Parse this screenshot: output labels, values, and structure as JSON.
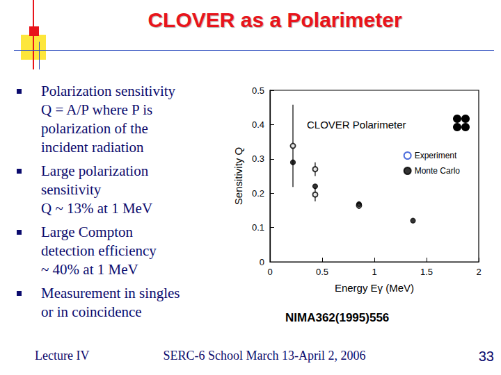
{
  "slide": {
    "title": "CLOVER as a Polarimeter",
    "bullets": [
      [
        "Polarization sensitivity",
        "Q = A/P   where P is",
        "polarization of the",
        "incident radiation"
      ],
      [
        "Large polarization",
        "sensitivity",
        "Q ~ 13% at 1 MeV"
      ],
      [
        "Large Compton",
        "detection efficiency",
        "~ 40% at 1 MeV"
      ],
      [
        "Measurement in singles",
        "or in coincidence"
      ]
    ],
    "source": "NIMA362(1995)556",
    "footer": {
      "left": "Lecture IV",
      "center": "SERC-6 School March 13-April 2, 2006",
      "page": "33"
    }
  },
  "chart_data": {
    "type": "scatter",
    "title": "CLOVER Polarimeter",
    "x_label": "Energy Eγ (MeV)",
    "y_label": "Sensitivity Q",
    "xlim": [
      0,
      2
    ],
    "xticks": [
      0,
      0.5,
      1,
      1.5,
      2
    ],
    "ylim": [
      0,
      0.5
    ],
    "yticks": [
      0,
      0.1,
      0.2,
      0.3,
      0.4,
      0.5
    ],
    "legend": "top-right",
    "grid": false,
    "series": [
      {
        "name": "Experiment",
        "color": "#000000",
        "marker": "open_circle",
        "x": [
          0.22,
          0.433,
          0.433,
          0.853
        ],
        "values": [
          0.338,
          0.27,
          0.196,
          0.164
        ],
        "errors": [
          0.12,
          0.02,
          0.02,
          0.01
        ]
      },
      {
        "name": "Monte Carlo",
        "color": "#000000",
        "marker": "filled_circle",
        "x": [
          0.22,
          0.433,
          0.853,
          1.37
        ],
        "values": [
          0.29,
          0.22,
          0.168,
          0.12
        ]
      }
    ]
  }
}
